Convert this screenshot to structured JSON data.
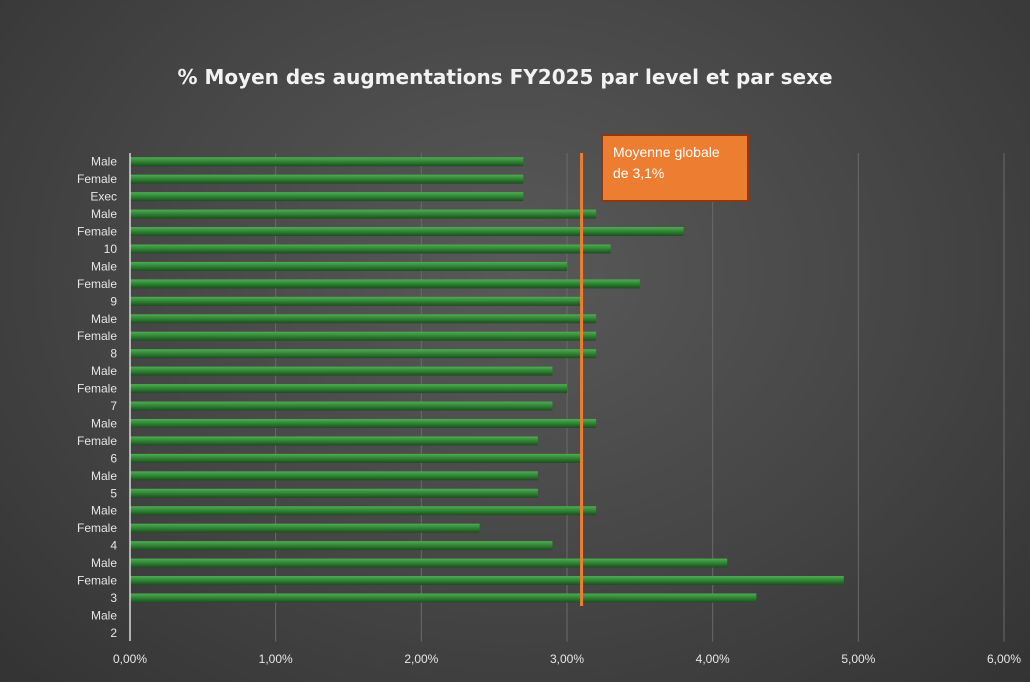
{
  "chart_data": {
    "type": "bar",
    "orientation": "horizontal",
    "title": "% Moyen des augmentations FY2025 par level et par sexe",
    "categories": [
      "Male",
      "Female",
      "Exec",
      "Male",
      "Female",
      "10",
      "Male",
      "Female",
      "9",
      "Male",
      "Female",
      "8",
      "Male",
      "Female",
      "7",
      "Male",
      "Female",
      "6",
      "Male",
      "5",
      "Male",
      "Female",
      "4",
      "Male",
      "Female",
      "3",
      "Male",
      "2"
    ],
    "values": [
      2.7,
      2.7,
      2.7,
      3.2,
      3.8,
      3.3,
      3.0,
      3.5,
      3.1,
      3.2,
      3.2,
      3.2,
      2.9,
      3.0,
      2.9,
      3.2,
      2.8,
      3.1,
      2.8,
      2.8,
      3.2,
      2.4,
      2.9,
      4.1,
      4.9,
      4.3,
      null,
      null
    ],
    "xlim": [
      0,
      6
    ],
    "xticks": [
      "0,00%",
      "1,00%",
      "2,00%",
      "3,00%",
      "4,00%",
      "5,00%",
      "6,00%"
    ],
    "reference_line": {
      "value": 3.1
    },
    "annotation": {
      "line1": "Moyenne globale",
      "line2": "de 3,1%"
    },
    "grid": true,
    "colors": {
      "bar": "#2e7d32",
      "bar_highlight": "#4caf50",
      "reference_line": "#ed7d31",
      "annotation_bg": "#ed7d31",
      "annotation_border": "#8b3a10"
    }
  }
}
